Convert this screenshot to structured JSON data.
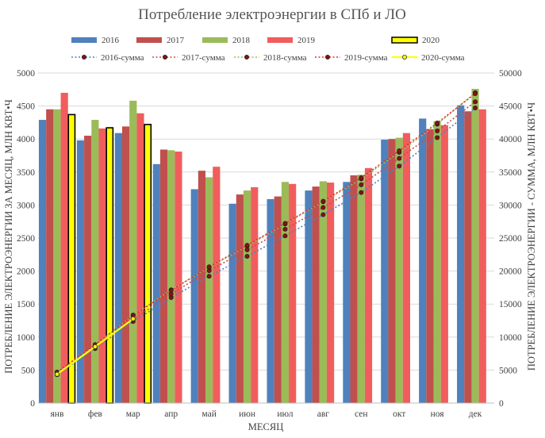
{
  "chart_data": {
    "type": "bar",
    "title": "Потребление электроэнергии в СПб и ЛО",
    "xlabel": "МЕСЯЦ",
    "ylabel": "ПОТРЕБЛЕНИЕ ЭЛЕКТРОЭНЕРГИИ ЗА МЕСЯЦ, МЛН КВТ•Ч",
    "y2label": "ПОТРЕБЛЕНИЕ ЭЛЕКТРОЭНЕРГИИ - СУММА, МЛН КВТ•Ч",
    "ylim": [
      0,
      5000
    ],
    "y2lim": [
      0,
      50000
    ],
    "yticks": [
      0,
      500,
      1000,
      1500,
      2000,
      2500,
      3000,
      3500,
      4000,
      4500,
      5000
    ],
    "y2ticks": [
      0,
      5000,
      10000,
      15000,
      20000,
      25000,
      30000,
      35000,
      40000,
      45000,
      50000
    ],
    "legend_position": "top",
    "categories": [
      "янв",
      "фев",
      "мар",
      "апр",
      "май",
      "июн",
      "июл",
      "авг",
      "сен",
      "окт",
      "ноя",
      "дек"
    ],
    "series": [
      {
        "name": "2016",
        "color": "#4f81bd",
        "values": [
          4290,
          3980,
          4090,
          3620,
          3240,
          3020,
          3090,
          3220,
          3350,
          3990,
          4310,
          4510
        ]
      },
      {
        "name": "2017",
        "color": "#c0504d",
        "values": [
          4450,
          4050,
          4190,
          3840,
          3520,
          3160,
          3130,
          3280,
          3450,
          4000,
          4150,
          4420
        ]
      },
      {
        "name": "2018",
        "color": "#9bbb59",
        "values": [
          4450,
          4290,
          4580,
          3830,
          3420,
          3220,
          3350,
          3360,
          3460,
          4020,
          4270,
          4760
        ]
      },
      {
        "name": "2019",
        "color": "#f15d5d",
        "values": [
          4700,
          4160,
          4390,
          3810,
          3580,
          3270,
          3320,
          3340,
          3560,
          4090,
          4210,
          4450
        ]
      },
      {
        "name": "2020",
        "color": "#ffff00",
        "outline": "#000000",
        "values": [
          4370,
          4170,
          4220,
          null,
          null,
          null,
          null,
          null,
          null,
          null,
          null,
          null
        ]
      }
    ],
    "cumulative_series": [
      {
        "name": "2016-сумма",
        "color": "#4f81bd",
        "axis": "right",
        "style": "dotted",
        "values": [
          4290,
          8270,
          12360,
          15980,
          19220,
          22240,
          25330,
          28550,
          31900,
          35890,
          40200,
          44710
        ]
      },
      {
        "name": "2017-сумма",
        "color": "#c0504d",
        "axis": "right",
        "style": "dotted",
        "values": [
          4450,
          8500,
          12690,
          16530,
          20050,
          23210,
          26340,
          29620,
          33070,
          37070,
          41220,
          45640
        ]
      },
      {
        "name": "2018-сумма",
        "color": "#9bbb59",
        "axis": "right",
        "style": "dotted",
        "values": [
          4450,
          8740,
          13320,
          17150,
          20570,
          23790,
          27140,
          30500,
          33960,
          37980,
          42250,
          47010
        ]
      },
      {
        "name": "2019-сумма",
        "color": "#e03030",
        "axis": "right",
        "style": "dotted",
        "values": [
          4700,
          8860,
          13250,
          17060,
          20640,
          23910,
          27230,
          30570,
          34130,
          38220,
          42430,
          46880
        ]
      },
      {
        "name": "2020-сумма",
        "color": "#ffff00",
        "axis": "right",
        "style": "solid",
        "values": [
          4370,
          8540,
          12760,
          null,
          null,
          null,
          null,
          null,
          null,
          null,
          null,
          null
        ]
      }
    ]
  }
}
